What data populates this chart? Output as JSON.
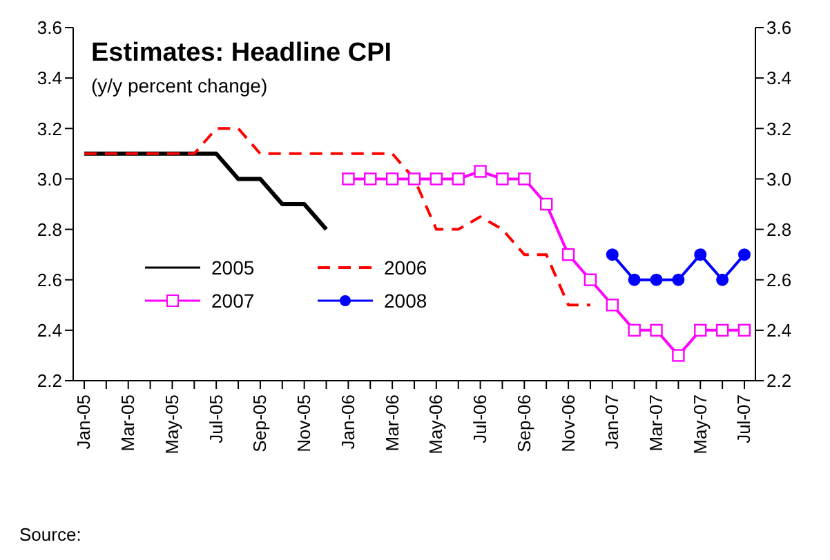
{
  "chart_data": {
    "type": "line",
    "title": "Estimates: Headline CPI",
    "subtitle": "(y/y percent change)",
    "categories": [
      "Jan-05",
      null,
      "Mar-05",
      null,
      "May-05",
      null,
      "Jul-05",
      null,
      "Sep-05",
      null,
      "Nov-05",
      null,
      "Jan-06",
      null,
      "Mar-06",
      null,
      "May-06",
      null,
      "Jul-06",
      null,
      "Sep-06",
      null,
      "Nov-06",
      null,
      "Jan-07",
      null,
      "Mar-07",
      null,
      "May-07",
      null,
      "Jul-07"
    ],
    "series": [
      {
        "name": "2005",
        "color": "#000000",
        "marker": "none",
        "line_style": "solid",
        "values": [
          3.1,
          3.1,
          3.1,
          3.1,
          3.1,
          3.1,
          3.1,
          3.0,
          3.0,
          2.9,
          2.9,
          2.8,
          null,
          null,
          null,
          null,
          null,
          null,
          null,
          null,
          null,
          null,
          null,
          null,
          null,
          null,
          null,
          null,
          null,
          null,
          null
        ]
      },
      {
        "name": "2006",
        "color": "#ff0000",
        "marker": "none",
        "line_style": "dashed",
        "values": [
          3.1,
          3.1,
          3.1,
          3.1,
          3.1,
          3.1,
          3.2,
          3.2,
          3.1,
          3.1,
          3.1,
          3.1,
          3.1,
          3.1,
          3.1,
          3.0,
          2.8,
          2.8,
          2.85,
          2.8,
          2.7,
          2.7,
          2.5,
          2.5,
          null,
          null,
          null,
          null,
          null,
          null,
          null
        ]
      },
      {
        "name": "2007",
        "color": "#ff00ff",
        "marker": "square",
        "line_style": "solid",
        "values": [
          null,
          null,
          null,
          null,
          null,
          null,
          null,
          null,
          null,
          null,
          null,
          null,
          3.0,
          3.0,
          3.0,
          3.0,
          3.0,
          3.0,
          3.03,
          3.0,
          3.0,
          2.9,
          2.7,
          2.6,
          2.5,
          2.4,
          2.4,
          2.3,
          2.4,
          2.4,
          2.4
        ]
      },
      {
        "name": "2008",
        "color": "#0000ff",
        "marker": "circle",
        "line_style": "solid",
        "values": [
          null,
          null,
          null,
          null,
          null,
          null,
          null,
          null,
          null,
          null,
          null,
          null,
          null,
          null,
          null,
          null,
          null,
          null,
          null,
          null,
          null,
          null,
          null,
          null,
          2.7,
          2.6,
          2.6,
          2.6,
          2.7,
          2.6,
          2.7
        ]
      }
    ],
    "ylim": [
      2.2,
      3.6
    ],
    "yticks": [
      2.2,
      2.4,
      2.6,
      2.8,
      {
        "value": 3,
        "label": "3.0"
      },
      3.2,
      3.4,
      3.6
    ],
    "y2lim": [
      2.2,
      3.6
    ],
    "y2ticks": [
      2.2,
      2.4,
      2.6,
      2.8,
      {
        "value": 3,
        "label": "3.0"
      },
      3.2,
      3.4,
      3.6
    ],
    "grid": false,
    "legend": "center",
    "annotations": [
      "Source:"
    ]
  }
}
